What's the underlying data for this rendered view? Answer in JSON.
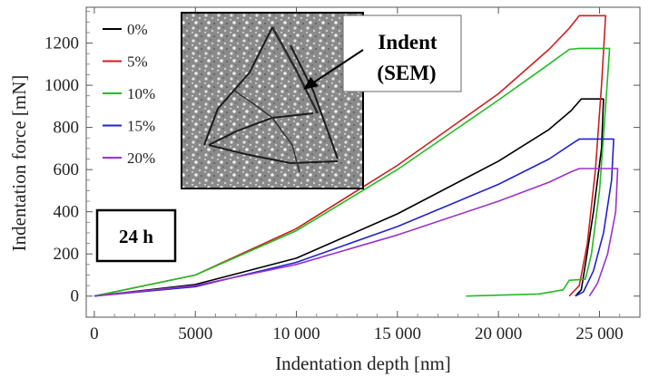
{
  "chart_data": {
    "type": "line",
    "xlabel": "Indentation depth [nm]",
    "ylabel": "Indentation force  [mN]",
    "xlim": [
      -400,
      27000
    ],
    "ylim": [
      -100,
      1370
    ],
    "x_ticks": [
      0,
      5000,
      10000,
      15000,
      20000,
      25000
    ],
    "x_tick_labels": [
      "0",
      "5000",
      "10 000",
      "15 000",
      "20 000",
      "25 000"
    ],
    "y_ticks": [
      0,
      200,
      400,
      600,
      800,
      1000,
      1200
    ],
    "y_tick_labels": [
      "0",
      "200",
      "400",
      "600",
      "800",
      "1000",
      "1200"
    ],
    "legend_position": "top-left",
    "annotations": {
      "time_label": "24 h",
      "sem_label_line1": "Indent",
      "sem_label_line2": "(SEM)"
    },
    "series": [
      {
        "name": "0%",
        "color": "#000000",
        "points": [
          [
            0,
            0
          ],
          [
            5000,
            55
          ],
          [
            10000,
            180
          ],
          [
            15000,
            390
          ],
          [
            20000,
            640
          ],
          [
            22500,
            790
          ],
          [
            23600,
            880
          ],
          [
            24100,
            935
          ],
          [
            25200,
            935
          ],
          [
            25100,
            700
          ],
          [
            24700,
            400
          ],
          [
            24350,
            180
          ],
          [
            24100,
            30
          ],
          [
            23800,
            0
          ]
        ]
      },
      {
        "name": "5%",
        "color": "#cc1f1f",
        "points": [
          [
            0,
            0
          ],
          [
            5000,
            100
          ],
          [
            10000,
            320
          ],
          [
            15000,
            620
          ],
          [
            20000,
            960
          ],
          [
            22500,
            1170
          ],
          [
            23500,
            1270
          ],
          [
            24000,
            1330
          ],
          [
            25300,
            1330
          ],
          [
            25100,
            1000
          ],
          [
            24800,
            600
          ],
          [
            24400,
            250
          ],
          [
            24000,
            50
          ],
          [
            23500,
            0
          ]
        ]
      },
      {
        "name": "10%",
        "color": "#22bb22",
        "points": [
          [
            0,
            0
          ],
          [
            5000,
            100
          ],
          [
            10000,
            310
          ],
          [
            15000,
            600
          ],
          [
            20000,
            930
          ],
          [
            22500,
            1100
          ],
          [
            23500,
            1170
          ],
          [
            24000,
            1175
          ],
          [
            25500,
            1175
          ],
          [
            25300,
            900
          ],
          [
            25000,
            500
          ],
          [
            24600,
            200
          ],
          [
            24300,
            80
          ],
          [
            23500,
            75
          ],
          [
            23200,
            30
          ],
          [
            22000,
            10
          ],
          [
            18400,
            0
          ]
        ]
      },
      {
        "name": "15%",
        "color": "#2222cc",
        "points": [
          [
            0,
            0
          ],
          [
            5000,
            45
          ],
          [
            10000,
            160
          ],
          [
            15000,
            330
          ],
          [
            20000,
            530
          ],
          [
            22500,
            650
          ],
          [
            23600,
            720
          ],
          [
            24000,
            745
          ],
          [
            25700,
            745
          ],
          [
            25600,
            550
          ],
          [
            25200,
            300
          ],
          [
            24700,
            120
          ],
          [
            24200,
            20
          ],
          [
            23800,
            0
          ]
        ]
      },
      {
        "name": "20%",
        "color": "#9933cc",
        "points": [
          [
            0,
            0
          ],
          [
            5000,
            50
          ],
          [
            10000,
            150
          ],
          [
            15000,
            290
          ],
          [
            20000,
            450
          ],
          [
            22500,
            540
          ],
          [
            23600,
            590
          ],
          [
            24000,
            605
          ],
          [
            25900,
            605
          ],
          [
            25800,
            400
          ],
          [
            25400,
            200
          ],
          [
            24900,
            60
          ],
          [
            24500,
            0
          ]
        ]
      }
    ]
  }
}
